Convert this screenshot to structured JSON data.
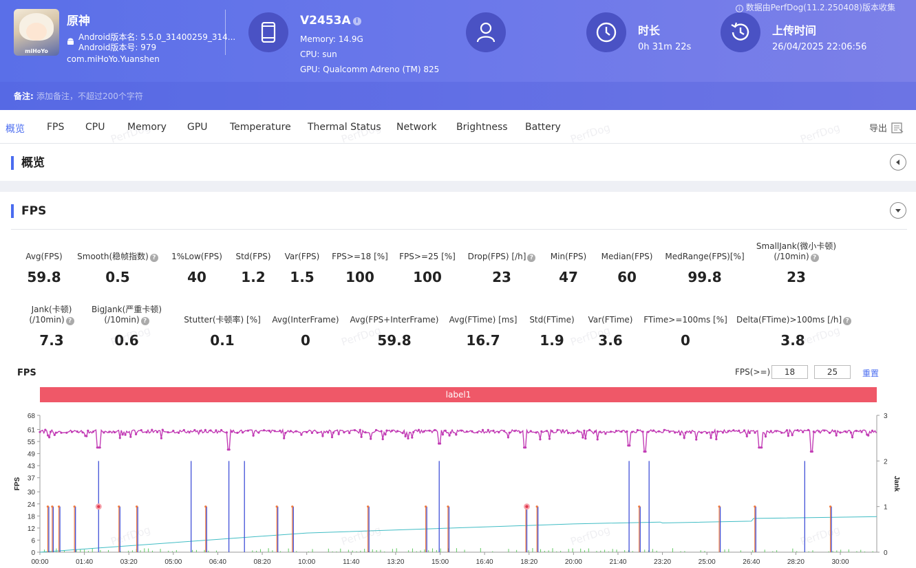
{
  "header": {
    "source_note": "数据由PerfDog(11.2.250408)版本收集",
    "app": {
      "name": "原神",
      "icon_text": "miHoYo",
      "version_name": "Android版本名: 5.5.0_31400259_314...",
      "version_code": "Android版本号: 979",
      "package": "com.miHoYo.Yuanshen"
    },
    "device": {
      "name": "V2453A",
      "memory": "Memory: 14.9G",
      "cpu": "CPU: sun",
      "gpu": "GPU: Qualcomm Adreno (TM) 825"
    },
    "duration": {
      "title": "时长",
      "value": "0h 31m 22s"
    },
    "upload": {
      "title": "上传时间",
      "value": "26/04/2025 22:06:56"
    },
    "note": {
      "label": "备注:",
      "placeholder": "添加备注，不超过200个字符"
    }
  },
  "tabs": [
    {
      "label": "概览",
      "active": true
    },
    {
      "label": "FPS"
    },
    {
      "label": "CPU"
    },
    {
      "label": "Memory"
    },
    {
      "label": "GPU"
    },
    {
      "label": "Temperature"
    },
    {
      "label": "Thermal Status"
    },
    {
      "label": "Network"
    },
    {
      "label": "Brightness"
    },
    {
      "label": "Battery"
    }
  ],
  "export_label": "导出",
  "overview": {
    "title": "概览"
  },
  "fps_section": {
    "title": "FPS",
    "metrics_row1": [
      {
        "label": "Avg(FPS)",
        "value": "59.8"
      },
      {
        "label": "Smooth(稳帧指数)",
        "value": "0.5",
        "help": true
      },
      {
        "label": "1%Low(FPS)",
        "value": "40"
      },
      {
        "label": "Std(FPS)",
        "value": "1.2"
      },
      {
        "label": "Var(FPS)",
        "value": "1.5"
      },
      {
        "label": "FPS>=18 [%]",
        "value": "100"
      },
      {
        "label": "FPS>=25 [%]",
        "value": "100"
      },
      {
        "label": "Drop(FPS) [/h]",
        "value": "23",
        "help": true
      },
      {
        "label": "Min(FPS)",
        "value": "47"
      },
      {
        "label": "Median(FPS)",
        "value": "60"
      },
      {
        "label": "MedRange(FPS)[%]",
        "value": "99.8"
      },
      {
        "label": "SmallJank(微小卡顿)",
        "label2": "(/10min)",
        "value": "23",
        "help": true
      }
    ],
    "metrics_row2": [
      {
        "label": "Jank(卡顿)",
        "label2": "(/10min)",
        "value": "7.3",
        "help": true
      },
      {
        "label": "BigJank(严重卡顿)",
        "label2": "(/10min)",
        "value": "0.6",
        "help": true
      },
      {
        "label": "Stutter(卡顿率) [%]",
        "value": "0.1"
      },
      {
        "label": "Avg(InterFrame)",
        "value": "0"
      },
      {
        "label": "Avg(FPS+InterFrame)",
        "value": "59.8"
      },
      {
        "label": "Avg(FTime) [ms]",
        "value": "16.7"
      },
      {
        "label": "Std(FTime)",
        "value": "1.9"
      },
      {
        "label": "Var(FTime)",
        "value": "3.6"
      },
      {
        "label": "FTime>=100ms [%]",
        "value": "0"
      },
      {
        "label": "Delta(FTime)>100ms [/h]",
        "value": "3.8",
        "help": true
      }
    ],
    "chart_label": "FPS",
    "fps_filter_label": "FPS(>=)",
    "fps_filter_1": "18",
    "fps_filter_2": "25",
    "reset_label": "重置",
    "label_bar": "label1"
  },
  "watermark": "PerfDog",
  "colors": {
    "header_start": "#5a6fe8",
    "accent": "#4a6cf0",
    "fps_line": "#c23cb5",
    "jank": "#4150d8",
    "bigjank": "#f07b3f",
    "cumulative": "#3fbcc4",
    "small": "#5fc95f",
    "label_bar": "#ef5868"
  },
  "chart_data": {
    "type": "line",
    "xlabel": "",
    "ylabel": "FPS",
    "y2label": "Jank",
    "ylim": [
      0,
      68
    ],
    "y2lim": [
      0,
      3
    ],
    "y_ticks": [
      0,
      6,
      12,
      18,
      24,
      30,
      37,
      43,
      49,
      55,
      61,
      68
    ],
    "y2_ticks": [
      0,
      1,
      2,
      3
    ],
    "x_ticks": [
      "00:00",
      "01:40",
      "03:20",
      "05:00",
      "06:40",
      "08:20",
      "10:00",
      "11:40",
      "13:20",
      "15:00",
      "16:40",
      "18:20",
      "20:00",
      "21:40",
      "23:20",
      "25:00",
      "26:40",
      "28:20",
      "30:00"
    ],
    "fps_baseline": 60,
    "fps_dips_min": [
      {
        "t": "02:12",
        "fps": 52
      },
      {
        "t": "07:05",
        "fps": 51
      },
      {
        "t": "14:58",
        "fps": 54
      },
      {
        "t": "18:10",
        "fps": 52
      },
      {
        "t": "22:05",
        "fps": 53
      },
      {
        "t": "22:40",
        "fps": 50
      },
      {
        "t": "27:00",
        "fps": 52
      },
      {
        "t": "28:55",
        "fps": 50
      }
    ],
    "jank_events": [
      {
        "t": "00:20",
        "level": 1
      },
      {
        "t": "00:30",
        "level": 1
      },
      {
        "t": "00:45",
        "level": 1
      },
      {
        "t": "01:20",
        "level": 1
      },
      {
        "t": "02:12",
        "level": 2
      },
      {
        "t": "03:00",
        "level": 1
      },
      {
        "t": "03:40",
        "level": 1
      },
      {
        "t": "05:40",
        "level": 2
      },
      {
        "t": "06:15",
        "level": 1
      },
      {
        "t": "07:05",
        "level": 2
      },
      {
        "t": "07:40",
        "level": 2
      },
      {
        "t": "08:55",
        "level": 1
      },
      {
        "t": "09:30",
        "level": 1
      },
      {
        "t": "12:20",
        "level": 1
      },
      {
        "t": "14:30",
        "level": 1
      },
      {
        "t": "14:58",
        "level": 2
      },
      {
        "t": "15:20",
        "level": 1
      },
      {
        "t": "18:15",
        "level": 1
      },
      {
        "t": "18:40",
        "level": 1
      },
      {
        "t": "22:05",
        "level": 2
      },
      {
        "t": "22:30",
        "level": 1
      },
      {
        "t": "22:50",
        "level": 2
      },
      {
        "t": "25:30",
        "level": 1
      },
      {
        "t": "26:50",
        "level": 1
      },
      {
        "t": "28:40",
        "level": 2
      },
      {
        "t": "29:40",
        "level": 1
      }
    ],
    "bigjank_events": [
      {
        "t": "02:12"
      },
      {
        "t": "18:15"
      }
    ],
    "cumulative_stutter": [
      {
        "t": "00:00",
        "v": 0.0
      },
      {
        "t": "10:00",
        "v": 0.42
      },
      {
        "t": "20:00",
        "v": 0.62
      },
      {
        "t": "23:15",
        "v": 0.66
      },
      {
        "t": "23:20",
        "v": 0.64
      },
      {
        "t": "26:40",
        "v": 0.68
      },
      {
        "t": "26:45",
        "v": 0.74
      },
      {
        "t": "31:22",
        "v": 0.78
      }
    ]
  }
}
